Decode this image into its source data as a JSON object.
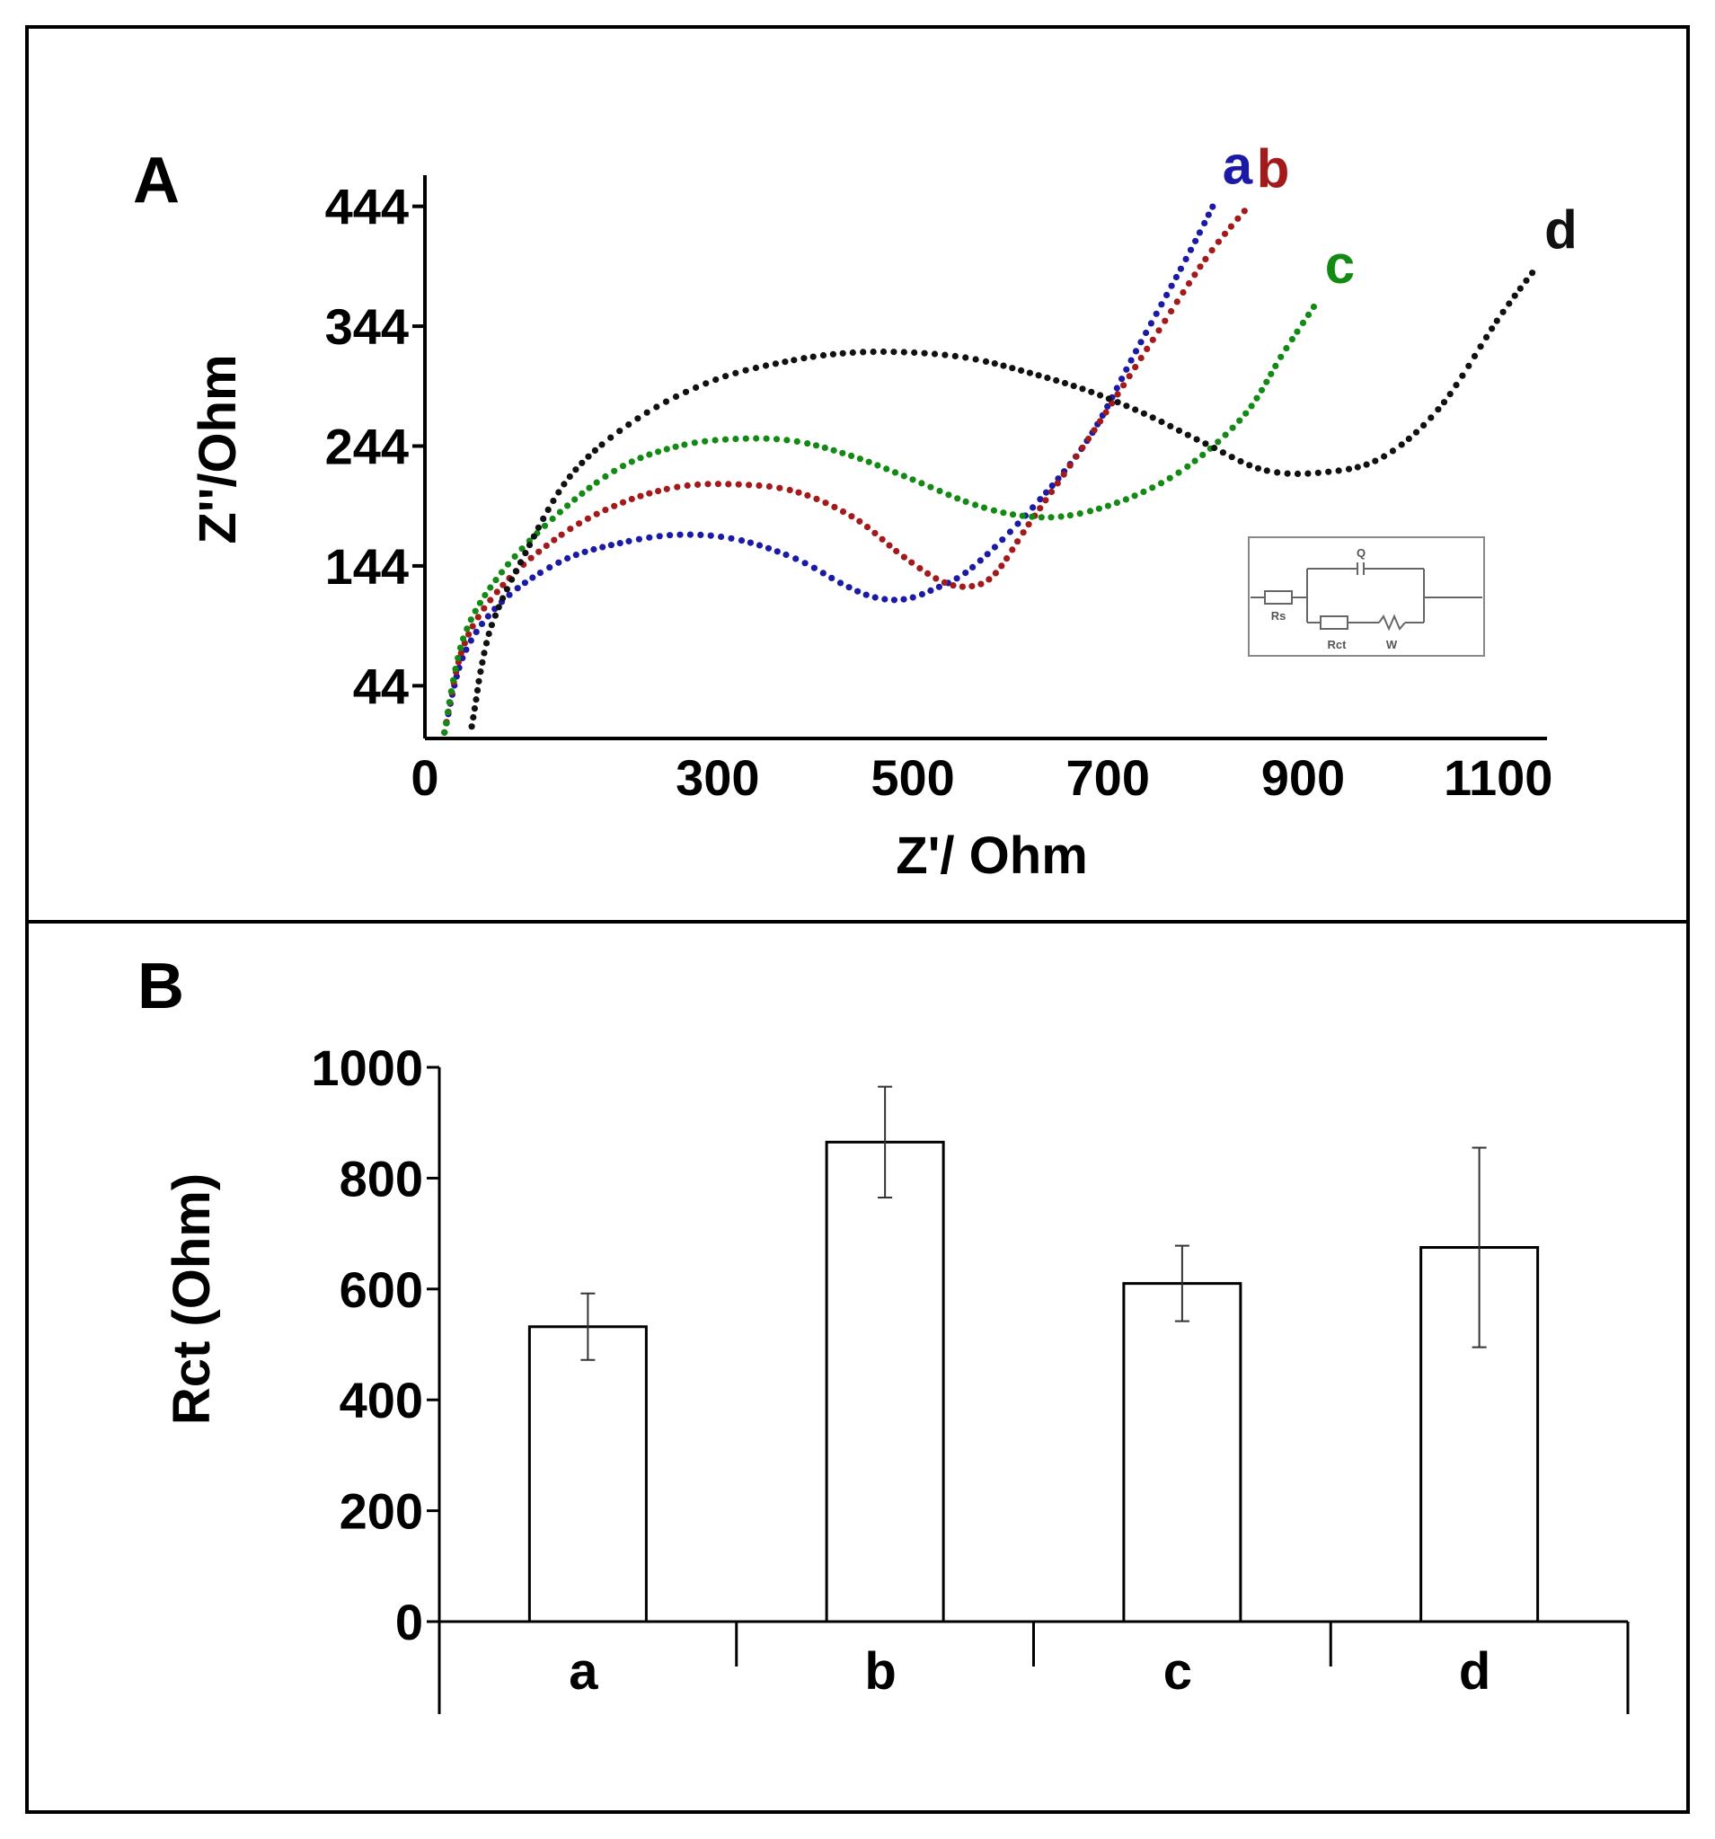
{
  "panel_a": {
    "letter": "A",
    "chart_data": {
      "type": "scatter",
      "xlabel": "Z'/ Ohm",
      "ylabel": "Z''/Ohm",
      "xlim": [
        0,
        1150
      ],
      "ylim": [
        0,
        470
      ],
      "x_ticks": [
        0,
        300,
        500,
        700,
        900,
        1100
      ],
      "y_ticks": [
        44,
        144,
        244,
        344,
        444
      ],
      "x_tick_labels": [
        "0",
        "300",
        "500",
        "700",
        "900",
        "1100"
      ],
      "y_tick_labels": [
        "44",
        "144",
        "244",
        "344",
        "444"
      ],
      "series": [
        {
          "name": "a",
          "color": "#1a1aa6",
          "points": [
            [
              20,
              5
            ],
            [
              40,
              70
            ],
            [
              80,
              115
            ],
            [
              140,
              148
            ],
            [
              200,
              163
            ],
            [
              260,
              170
            ],
            [
              320,
              166
            ],
            [
              380,
              150
            ],
            [
              430,
              128
            ],
            [
              460,
              118
            ],
            [
              490,
              116
            ],
            [
              520,
              124
            ],
            [
              560,
              142
            ],
            [
              620,
              190
            ],
            [
              680,
              250
            ],
            [
              730,
              325
            ],
            [
              780,
              400
            ],
            [
              810,
              448
            ]
          ]
        },
        {
          "name": "b",
          "color": "#a31a1a",
          "points": [
            [
              20,
              5
            ],
            [
              40,
              78
            ],
            [
              80,
              128
            ],
            [
              140,
              170
            ],
            [
              200,
              196
            ],
            [
              260,
              210
            ],
            [
              320,
              212
            ],
            [
              380,
              206
            ],
            [
              440,
              184
            ],
            [
              490,
              152
            ],
            [
              530,
              131
            ],
            [
              560,
              127
            ],
            [
              585,
              138
            ],
            [
              620,
              180
            ],
            [
              680,
              250
            ],
            [
              740,
              325
            ],
            [
              800,
              400
            ],
            [
              845,
              445
            ]
          ]
        },
        {
          "name": "c",
          "color": "#138a13",
          "points": [
            [
              20,
              5
            ],
            [
              40,
              85
            ],
            [
              80,
              140
            ],
            [
              140,
              190
            ],
            [
              200,
              226
            ],
            [
              260,
              244
            ],
            [
              320,
              250
            ],
            [
              380,
              248
            ],
            [
              440,
              235
            ],
            [
              500,
              216
            ],
            [
              560,
              196
            ],
            [
              610,
              186
            ],
            [
              660,
              186
            ],
            [
              720,
              200
            ],
            [
              780,
              226
            ],
            [
              840,
              270
            ],
            [
              880,
              322
            ],
            [
              915,
              365
            ]
          ]
        },
        {
          "name": "d",
          "color": "#111111",
          "points": [
            [
              48,
              10
            ],
            [
              52,
              30
            ],
            [
              58,
              60
            ],
            [
              70,
              98
            ],
            [
              100,
              150
            ],
            [
              150,
              220
            ],
            [
              220,
              268
            ],
            [
              300,
              300
            ],
            [
              380,
              316
            ],
            [
              440,
              322
            ],
            [
              500,
              322
            ],
            [
              560,
              317
            ],
            [
              620,
              305
            ],
            [
              680,
              290
            ],
            [
              740,
              270
            ],
            [
              800,
              246
            ],
            [
              860,
              224
            ],
            [
              920,
              222
            ],
            [
              980,
              234
            ],
            [
              1040,
              276
            ],
            [
              1100,
              350
            ],
            [
              1140,
              394
            ]
          ]
        }
      ],
      "curve_labels": [
        "a",
        "b",
        "c",
        "d"
      ],
      "inset": {
        "description_labels": [
          "Q",
          "Rs",
          "Rct",
          "W"
        ]
      }
    }
  },
  "panel_b": {
    "letter": "B",
    "chart_data": {
      "type": "bar",
      "categories": [
        "a",
        "b",
        "c",
        "d"
      ],
      "values": [
        532,
        865,
        610,
        675
      ],
      "errors": [
        60,
        100,
        68,
        180
      ],
      "ylabel": "Rct (Ohm)",
      "xlabel": "",
      "ylim": [
        0,
        1000
      ],
      "y_ticks": [
        0,
        200,
        400,
        600,
        800,
        1000
      ],
      "y_tick_labels": [
        "0",
        "200",
        "400",
        "600",
        "800",
        "1000"
      ]
    }
  }
}
